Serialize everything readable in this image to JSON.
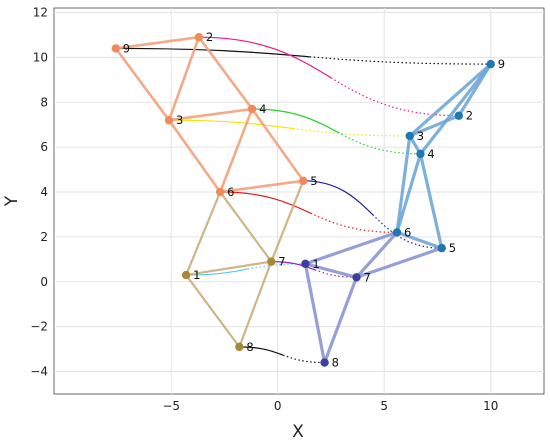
{
  "chart_data": {
    "type": "line",
    "xlabel": "X",
    "ylabel": "Y",
    "xlim": [
      -10.5,
      12.5
    ],
    "ylim": [
      -5,
      12.2
    ],
    "xticks": [
      -5,
      0,
      5,
      10
    ],
    "yticks": [
      -4,
      -2,
      0,
      2,
      4,
      6,
      8,
      10,
      12
    ],
    "grid": true,
    "graphs": [
      {
        "name": "",
        "color": "#f08a5d",
        "edge_color": "#f4a07a",
        "nodes": [
          {
            "id": "2",
            "x": -3.7,
            "y": 10.9
          },
          {
            "id": "9",
            "x": -7.6,
            "y": 10.4
          },
          {
            "id": "3",
            "x": -5.1,
            "y": 7.2
          },
          {
            "id": "4",
            "x": -1.2,
            "y": 7.7
          },
          {
            "id": "6",
            "x": -2.7,
            "y": 4.0
          },
          {
            "id": "5",
            "x": 1.2,
            "y": 4.5
          }
        ],
        "edges": [
          [
            "9",
            "2"
          ],
          [
            "2",
            "3"
          ],
          [
            "2",
            "4"
          ],
          [
            "9",
            "3"
          ],
          [
            "3",
            "4"
          ],
          [
            "4",
            "6"
          ],
          [
            "3",
            "6"
          ],
          [
            "5",
            "6"
          ],
          [
            "4",
            "5"
          ]
        ]
      },
      {
        "name": "",
        "color": "#a8893a",
        "edge_color": "#c9ad78",
        "nodes": [
          {
            "id": "1",
            "x": -4.3,
            "y": 0.3
          },
          {
            "id": "7",
            "x": -0.3,
            "y": 0.9
          },
          {
            "id": "8",
            "x": -1.8,
            "y": -2.9
          }
        ],
        "edges": [
          [
            "1",
            "7"
          ],
          [
            "6",
            "1"
          ],
          [
            "6",
            "7"
          ],
          [
            "1",
            "8"
          ],
          [
            "8",
            "7"
          ],
          [
            "5",
            "7"
          ]
        ]
      },
      {
        "name": "",
        "color": "#1f78b4",
        "edge_color": "#6fa8d6",
        "nodes": [
          {
            "id": "9",
            "x": 10.0,
            "y": 9.7
          },
          {
            "id": "2",
            "x": 8.5,
            "y": 7.4
          },
          {
            "id": "3",
            "x": 6.2,
            "y": 6.5
          },
          {
            "id": "4",
            "x": 6.7,
            "y": 5.7
          },
          {
            "id": "6",
            "x": 5.6,
            "y": 2.2
          },
          {
            "id": "5",
            "x": 7.7,
            "y": 1.5
          }
        ],
        "edges": [
          [
            "9",
            "2"
          ],
          [
            "2",
            "3"
          ],
          [
            "3",
            "9"
          ],
          [
            "9",
            "4"
          ],
          [
            "3",
            "4"
          ],
          [
            "4",
            "6"
          ],
          [
            "3",
            "6"
          ],
          [
            "6",
            "5"
          ],
          [
            "4",
            "5"
          ]
        ]
      },
      {
        "name": "",
        "color": "#3b3fa5",
        "edge_color": "#8c95d3",
        "nodes": [
          {
            "id": "1",
            "x": 1.3,
            "y": 0.8
          },
          {
            "id": "7",
            "x": 3.7,
            "y": 0.2
          },
          {
            "id": "8",
            "x": 2.2,
            "y": -3.6
          }
        ],
        "edges": [
          [
            "1",
            "7"
          ],
          [
            "6",
            "1"
          ],
          [
            "6",
            "7"
          ],
          [
            "1",
            "8"
          ],
          [
            "8",
            "7"
          ],
          [
            "5",
            "7"
          ]
        ]
      }
    ],
    "correspondences": [
      {
        "from": "9",
        "color": "#111111"
      },
      {
        "from": "2",
        "color": "#e8188f"
      },
      {
        "from": "3",
        "color": "#f2e600"
      },
      {
        "from": "4",
        "color": "#2bd22b"
      },
      {
        "from": "5",
        "color": "#1d1fae"
      },
      {
        "from": "6",
        "color": "#e02020"
      },
      {
        "from": "1",
        "color": "#5bc6f0"
      },
      {
        "from": "7",
        "color": "#a01bbd"
      },
      {
        "from": "8",
        "color": "#111111"
      }
    ]
  }
}
